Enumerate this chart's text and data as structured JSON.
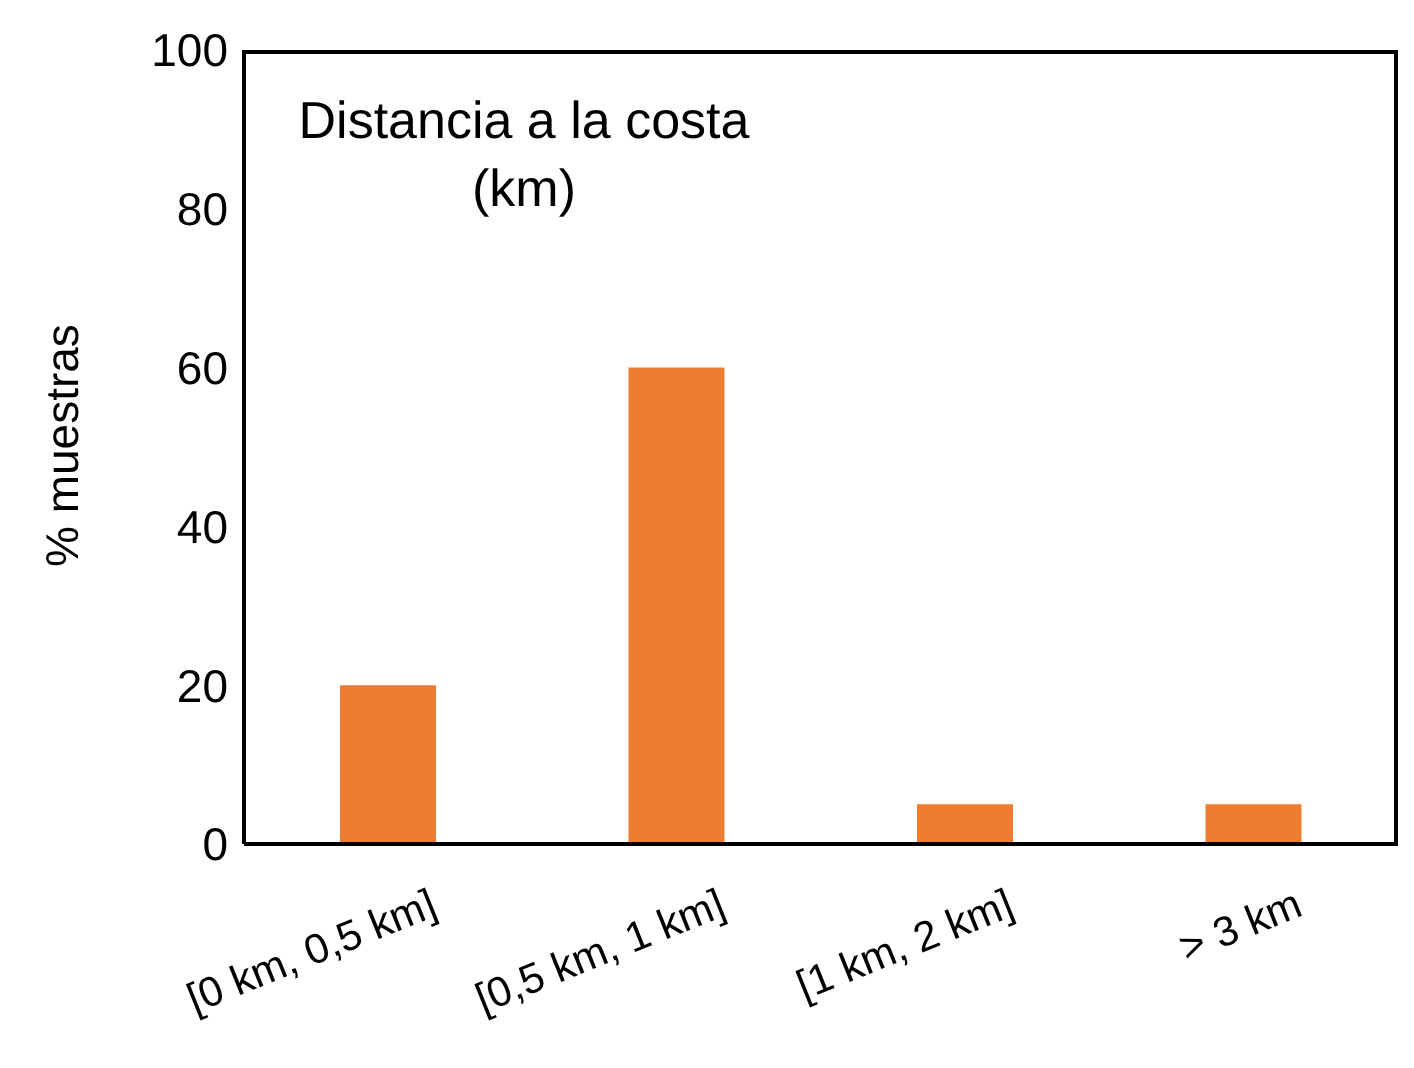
{
  "chart_data": {
    "type": "bar",
    "title": "Distancia a la costa (km)",
    "ylabel": "% muestras",
    "categories": [
      "[0 km, 0,5 km]",
      "[0,5 km, 1 km]",
      "[1 km, 2 km]",
      "> 3 km"
    ],
    "values": [
      20,
      60,
      5,
      5
    ],
    "color": "#ed7d31",
    "ylim": [
      0,
      100
    ],
    "yticks": [
      0,
      20,
      40,
      60,
      80,
      100
    ],
    "grid": false,
    "legend": false
  }
}
